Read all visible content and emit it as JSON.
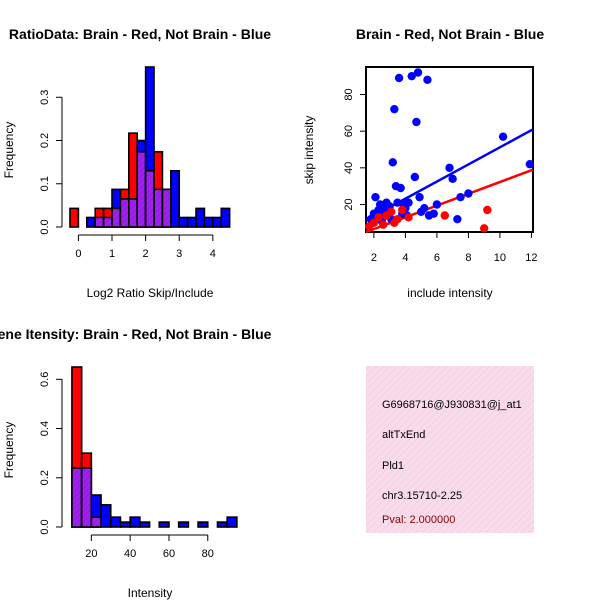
{
  "colors": {
    "red": "#ff0000",
    "blue": "#0000ff",
    "overlap": "#a020f0",
    "info_bg": "#f8dceb",
    "pval": "#8b0000"
  },
  "chart_data": [
    {
      "id": "ratio-hist",
      "type": "bar",
      "title": "RatioData: Brain - Red, Not Brain - Blue",
      "xlabel": "Log2 Ratio Skip/Include",
      "ylabel": "Frequency",
      "xlim": [
        -0.25,
        4.6
      ],
      "ylim": [
        0,
        0.37
      ],
      "xticks": [
        0,
        1,
        2,
        3,
        4
      ],
      "yticks": [
        0.0,
        0.1,
        0.2,
        0.3
      ],
      "bin_edges": [
        -0.25,
        0.0,
        0.25,
        0.5,
        0.75,
        1.0,
        1.25,
        1.5,
        1.75,
        2.0,
        2.25,
        2.5,
        2.75,
        3.0,
        3.25,
        3.5,
        3.75,
        4.0,
        4.25,
        4.5
      ],
      "series": [
        {
          "name": "Brain",
          "color": "red",
          "values": [
            0.043,
            0,
            0,
            0.043,
            0.043,
            0.043,
            0.087,
            0.217,
            0.174,
            0.13,
            0.174,
            0.087,
            0,
            0,
            0,
            0,
            0,
            0,
            0
          ]
        },
        {
          "name": "Not Brain",
          "color": "blue",
          "values": [
            0,
            0,
            0.022,
            0.022,
            0.022,
            0.087,
            0.065,
            0.065,
            0.2,
            0.37,
            0.087,
            0.087,
            0.13,
            0.022,
            0.022,
            0.043,
            0.022,
            0.022,
            0.043
          ]
        }
      ]
    },
    {
      "id": "scatter",
      "type": "scatter",
      "title": "Brain - Red, Not Brain - Blue",
      "xlabel": "include intensity",
      "ylabel": "skip intensity",
      "xlim": [
        1.5,
        12.1
      ],
      "ylim": [
        5,
        95
      ],
      "xticks": [
        2,
        4,
        6,
        8,
        10,
        12
      ],
      "yticks": [
        20,
        40,
        60,
        80
      ],
      "series": [
        {
          "name": "Not Brain",
          "color": "blue",
          "points": [
            [
              1.8,
              12
            ],
            [
              2.0,
              15
            ],
            [
              2.1,
              24
            ],
            [
              2.2,
              13
            ],
            [
              2.3,
              17
            ],
            [
              2.4,
              20
            ],
            [
              2.5,
              11
            ],
            [
              2.6,
              18
            ],
            [
              2.7,
              14
            ],
            [
              2.8,
              21
            ],
            [
              2.9,
              16
            ],
            [
              3.0,
              19
            ],
            [
              3.1,
              12
            ],
            [
              3.2,
              43
            ],
            [
              3.3,
              72
            ],
            [
              3.4,
              30
            ],
            [
              3.5,
              21
            ],
            [
              3.6,
              89
            ],
            [
              3.7,
              29
            ],
            [
              3.8,
              15
            ],
            [
              3.9,
              20
            ],
            [
              4.0,
              18
            ],
            [
              4.1,
              14
            ],
            [
              4.2,
              21
            ],
            [
              4.4,
              90
            ],
            [
              4.6,
              35
            ],
            [
              4.7,
              65
            ],
            [
              4.8,
              92
            ],
            [
              4.9,
              24
            ],
            [
              5.0,
              16
            ],
            [
              5.2,
              18
            ],
            [
              5.4,
              88
            ],
            [
              5.5,
              14
            ],
            [
              5.8,
              15
            ],
            [
              6.0,
              20
            ],
            [
              6.8,
              40
            ],
            [
              7.0,
              34
            ],
            [
              7.3,
              12
            ],
            [
              7.5,
              24
            ],
            [
              8.0,
              26
            ],
            [
              10.2,
              57
            ],
            [
              11.9,
              42
            ]
          ]
        },
        {
          "name": "Brain",
          "color": "red",
          "points": [
            [
              1.7,
              8
            ],
            [
              2.0,
              10
            ],
            [
              2.3,
              13
            ],
            [
              2.6,
              9
            ],
            [
              2.8,
              14
            ],
            [
              3.1,
              16
            ],
            [
              3.3,
              10
            ],
            [
              3.5,
              12
            ],
            [
              3.8,
              17
            ],
            [
              4.2,
              13
            ],
            [
              6.5,
              14
            ],
            [
              9.0,
              7
            ],
            [
              9.2,
              17
            ]
          ]
        }
      ],
      "fits": [
        {
          "color": "blue",
          "from": [
            1.5,
            11.5
          ],
          "to": [
            12.1,
            61
          ]
        },
        {
          "color": "red",
          "from": [
            1.5,
            5
          ],
          "to": [
            12.1,
            39
          ]
        }
      ]
    },
    {
      "id": "intensity-hist",
      "type": "bar",
      "title": "Exon/Gene Itensity: Brain - Red, Not Brain - Blue",
      "xlabel": "Intensity",
      "ylabel": "Frequency",
      "xlim": [
        9,
        93
      ],
      "ylim": [
        0,
        0.65
      ],
      "xticks": [
        20,
        40,
        60,
        80
      ],
      "yticks": [
        0.0,
        0.2,
        0.4,
        0.6
      ],
      "bin_edges": [
        10,
        15,
        20,
        25,
        30,
        35,
        40,
        45,
        50,
        55,
        60,
        65,
        70,
        75,
        80,
        85,
        90,
        95
      ],
      "series": [
        {
          "name": "Brain",
          "color": "red",
          "values": [
            0.65,
            0.3,
            0.04,
            0,
            0,
            0,
            0,
            0,
            0,
            0,
            0,
            0,
            0,
            0,
            0,
            0,
            0
          ]
        },
        {
          "name": "Not Brain",
          "color": "blue",
          "values": [
            0.24,
            0.24,
            0.13,
            0.09,
            0.04,
            0.02,
            0.04,
            0.02,
            0,
            0.02,
            0,
            0.02,
            0,
            0.02,
            0,
            0.02,
            0.04
          ]
        }
      ]
    }
  ],
  "info": {
    "id": "G6968716@J930831@j_at1",
    "type": "altTxEnd",
    "gene": "Pld1",
    "location": "chr3.15710-2.25",
    "pval": "Pval: 2.000000"
  }
}
